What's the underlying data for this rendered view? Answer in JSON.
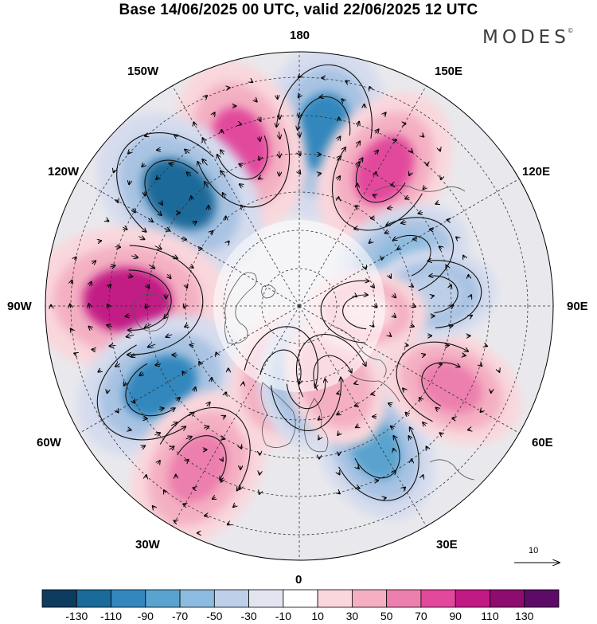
{
  "title": "Base 14/06/2025 00 UTC, valid 22/06/2025 12 UTC",
  "brand": "MODES",
  "brand_mark": "©",
  "longitude_labels": {
    "n180": "180",
    "w150": "150W",
    "e150": "150E",
    "w120": "120W",
    "e120": "120E",
    "w90": "90W",
    "e90": "90E",
    "w60": "60W",
    "e60": "60E",
    "w30": "30W",
    "e30": "30E",
    "s0": "0"
  },
  "vector_scale": {
    "label": "10",
    "value": 10
  },
  "colorbar": {
    "labels": [
      "-130",
      "-110",
      "-90",
      "-70",
      "-50",
      "-30",
      "-10",
      "10",
      "30",
      "50",
      "70",
      "90",
      "110",
      "130"
    ],
    "colors": [
      "#0f3b5e",
      "#1a6a9a",
      "#3387bd",
      "#5aa3cf",
      "#8dbbdf",
      "#bdcfe8",
      "#e4e4f1",
      "#ffffff",
      "#f9d7dc",
      "#f4b0c2",
      "#ec7fad",
      "#e2489c",
      "#c21a85",
      "#8e0c6f",
      "#5c0b66"
    ]
  },
  "anomaly_centers": [
    {
      "lon": 172,
      "lat": 44,
      "value": -85,
      "color": "#3387bd"
    },
    {
      "lon": 148,
      "lat": 48,
      "value": 75,
      "color": "#e2489c"
    },
    {
      "lon": -160,
      "lat": 45,
      "value": 80,
      "color": "#e2489c"
    },
    {
      "lon": -133,
      "lat": 47,
      "value": -95,
      "color": "#1a6a9a"
    },
    {
      "lon": -92,
      "lat": 45,
      "value": 110,
      "color": "#c21a85"
    },
    {
      "lon": -60,
      "lat": 48,
      "value": -85,
      "color": "#3387bd"
    },
    {
      "lon": -32,
      "lat": 40,
      "value": 75,
      "color": "#ec7fad"
    },
    {
      "lon": 28,
      "lat": 48,
      "value": -60,
      "color": "#5aa3cf"
    },
    {
      "lon": 62,
      "lat": 45,
      "value": 55,
      "color": "#ec7fad"
    },
    {
      "lon": 115,
      "lat": 60,
      "value": -45,
      "color": "#8dbbdf"
    },
    {
      "lon": 95,
      "lat": 55,
      "value": -35,
      "color": "#bdcfe8"
    },
    {
      "lon": -15,
      "lat": 70,
      "value": 45,
      "color": "#f4b0c2"
    },
    {
      "lon": 5,
      "lat": 70,
      "value": -40,
      "color": "#8dbbdf"
    },
    {
      "lon": 25,
      "lat": 68,
      "value": 40,
      "color": "#f4b0c2"
    },
    {
      "lon": 85,
      "lat": 72,
      "value": 25,
      "color": "#f9d7dc"
    }
  ]
}
